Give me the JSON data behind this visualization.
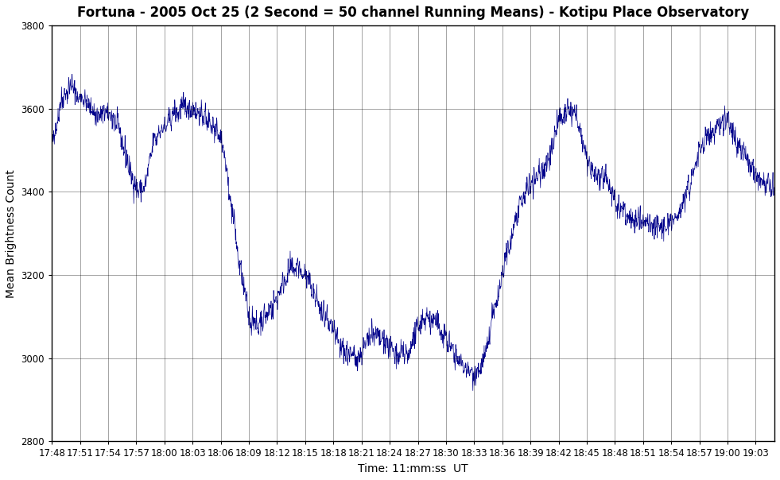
{
  "title": "Fortuna - 2005 Oct 25 (2 Second = 50 channel Running Means) - Kotipu Place Observatory",
  "xlabel": "Time: 11:mm:ss  UT",
  "ylabel": "Mean Brightness Count",
  "ylim": [
    2800,
    3800
  ],
  "yticks": [
    2800,
    3000,
    3200,
    3400,
    3600,
    3800
  ],
  "xtick_labels": [
    "17:48",
    "17:51",
    "17:54",
    "17:57",
    "18:00",
    "18:03",
    "18:06",
    "18:09",
    "18:12",
    "18:15",
    "18:18",
    "18:21",
    "18:24",
    "18:27",
    "18:30",
    "18:33",
    "18:36",
    "18:39",
    "18:42",
    "18:45",
    "18:48",
    "18:51",
    "18:54",
    "18:57",
    "19:00",
    "19:03"
  ],
  "line_color": "#00008B",
  "bg_color": "#ffffff",
  "title_fontsize": 12,
  "label_fontsize": 10,
  "tick_fontsize": 8.5,
  "figsize": [
    9.81,
    6.04
  ],
  "dpi": 100
}
